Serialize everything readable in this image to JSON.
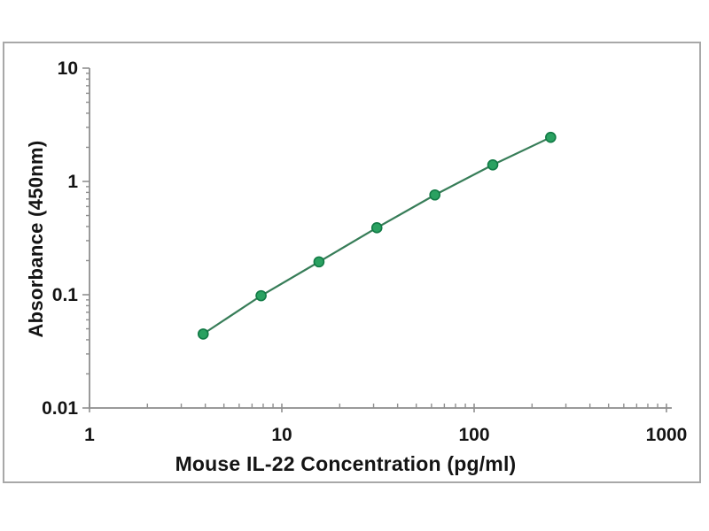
{
  "figure": {
    "background_color": "#ffffff",
    "frame_border_color": "#a8a8a8",
    "axis_line_color": "#9a9a9a",
    "tick_color": "#8f8f8f",
    "text_color": "#141414"
  },
  "chart_data": {
    "type": "line",
    "title": "",
    "xlabel": "Mouse IL-22 Concentration (pg/ml)",
    "ylabel": "Absorbance (450nm)",
    "x_scale": "log",
    "y_scale": "log",
    "xlim": [
      1,
      1000
    ],
    "ylim": [
      0.01,
      10
    ],
    "x_ticks": [
      1,
      10,
      100,
      1000
    ],
    "x_tick_labels": [
      "1",
      "10",
      "100",
      "1000"
    ],
    "y_ticks": [
      0.01,
      0.1,
      1,
      10
    ],
    "y_tick_labels": [
      "0.01",
      "0.1",
      "1",
      "10"
    ],
    "minor_log_ticks": true,
    "grid": false,
    "legend": null,
    "series": [
      {
        "x": [
          3.9,
          7.8,
          15.6,
          31.2,
          62.5,
          125,
          250
        ],
        "y": [
          0.045,
          0.098,
          0.195,
          0.39,
          0.76,
          1.4,
          2.45
        ],
        "line_color": "#377d58",
        "marker": "circle",
        "marker_fill": "#2aa161",
        "marker_edge": "#117a45"
      }
    ]
  }
}
